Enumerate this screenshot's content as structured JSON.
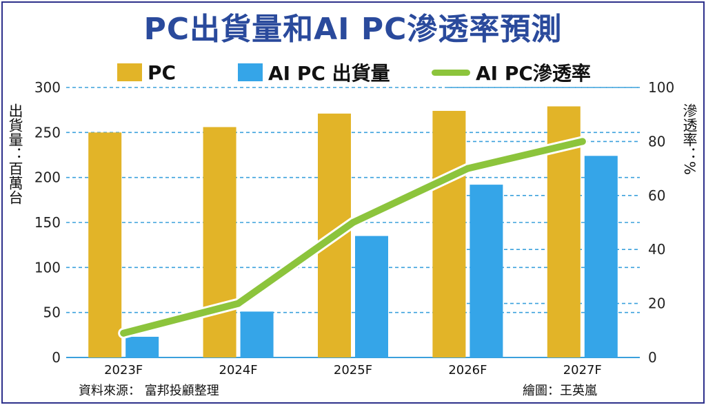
{
  "chart_data": {
    "type": "bar",
    "title": "PC出貨量和AI PC滲透率預測",
    "categories": [
      "2023F",
      "2024F",
      "2025F",
      "2026F",
      "2027F"
    ],
    "series": [
      {
        "name": "PC",
        "type": "bar",
        "axis": "left",
        "color": "#e2b428",
        "values": [
          250,
          256,
          271,
          274,
          279
        ]
      },
      {
        "name": "AI PC 出貨量",
        "type": "bar",
        "axis": "left",
        "color": "#35a5e8",
        "values": [
          23,
          51,
          135,
          192,
          224
        ]
      },
      {
        "name": "AI PC滲透率",
        "type": "line",
        "axis": "right",
        "color": "#8cc43c",
        "values": [
          9,
          20,
          50,
          70,
          80
        ]
      }
    ],
    "ylabel": "出貨量：百萬台",
    "y2label": "滲透率：%",
    "ylim": [
      0,
      300
    ],
    "y2lim": [
      0,
      100
    ],
    "yticks": [
      "0",
      "50",
      "100",
      "150",
      "200",
      "250",
      "300"
    ],
    "y2ticks": [
      "0",
      "20",
      "40",
      "60",
      "80",
      "100"
    ],
    "grid": true,
    "legend": "top"
  },
  "footer": {
    "source": "資料來源：  富邦投顧整理",
    "credit": "繪圖：王英嵐"
  }
}
